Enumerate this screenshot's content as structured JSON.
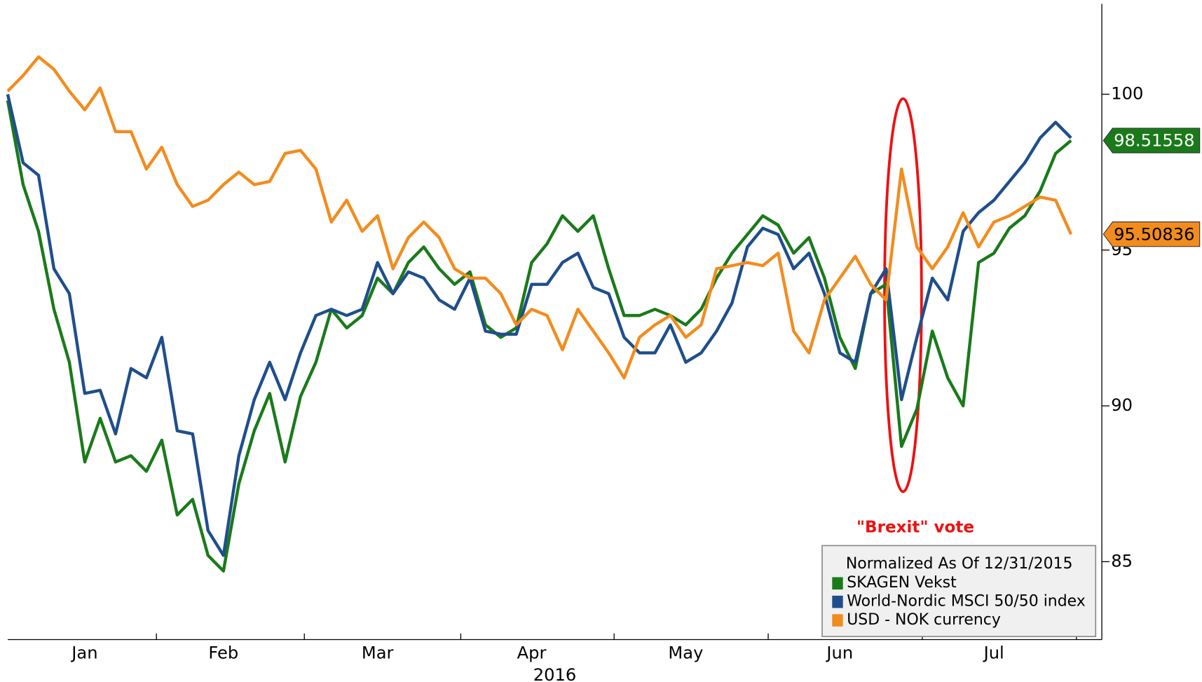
{
  "chart_data": {
    "type": "line",
    "xlabel": "2016",
    "annotation": "\"Brexit\" vote",
    "legend_title": "Normalized As Of 12/31/2015",
    "legend": "lower right",
    "ylim": [
      82.5,
      102.9
    ],
    "yticks": [
      85,
      90,
      95,
      100
    ],
    "categories": [
      null,
      null,
      null,
      null,
      null,
      "Jan",
      null,
      null,
      null,
      null,
      null,
      null,
      null,
      null,
      "Feb",
      null,
      null,
      null,
      null,
      null,
      null,
      null,
      null,
      null,
      "Mar",
      null,
      null,
      null,
      null,
      null,
      null,
      null,
      null,
      null,
      "Apr",
      null,
      null,
      null,
      null,
      null,
      null,
      null,
      null,
      null,
      "May",
      null,
      null,
      null,
      null,
      null,
      null,
      null,
      null,
      null,
      "Jun",
      null,
      null,
      null,
      null,
      null,
      null,
      null,
      null,
      null,
      "Jul",
      null,
      null,
      null,
      null,
      null
    ],
    "series": [
      {
        "name": "SKAGEN Vekst",
        "color": "#1a7a1a",
        "values": [
          99.8,
          97.1,
          95.6,
          93.1,
          91.4,
          88.2,
          89.6,
          88.2,
          88.4,
          87.9,
          88.9,
          86.5,
          87.0,
          85.2,
          84.7,
          87.5,
          89.2,
          90.4,
          88.2,
          90.3,
          91.4,
          93.1,
          92.5,
          92.9,
          94.1,
          93.6,
          94.6,
          95.1,
          94.4,
          93.9,
          94.3,
          92.6,
          92.2,
          92.5,
          94.6,
          95.2,
          96.1,
          95.6,
          96.1,
          94.4,
          92.9,
          92.9,
          93.1,
          92.9,
          92.6,
          93.1,
          94.1,
          94.9,
          95.5,
          96.1,
          95.8,
          94.9,
          95.4,
          94.1,
          92.2,
          91.2,
          93.6,
          93.9,
          88.7,
          89.9,
          92.4,
          90.9,
          90.0,
          94.6,
          94.9,
          95.7,
          96.1,
          96.9,
          98.1,
          98.51558
        ]
      },
      {
        "name": "World-Nordic MSCI 50/50 index",
        "color": "#1f4e8c",
        "values": [
          100,
          97.8,
          97.4,
          94.4,
          93.6,
          90.4,
          90.5,
          89.1,
          91.2,
          90.9,
          92.2,
          89.2,
          89.1,
          86.0,
          85.2,
          88.4,
          90.2,
          91.4,
          90.2,
          91.7,
          92.9,
          93.1,
          92.9,
          93.1,
          94.6,
          93.6,
          94.3,
          94.1,
          93.4,
          93.1,
          94.1,
          92.4,
          92.3,
          92.3,
          93.9,
          93.9,
          94.6,
          94.9,
          93.8,
          93.6,
          92.2,
          91.7,
          91.7,
          92.6,
          91.4,
          91.7,
          92.4,
          93.3,
          95.1,
          95.7,
          95.5,
          94.4,
          94.9,
          93.6,
          91.7,
          91.4,
          93.6,
          94.4,
          90.2,
          92.2,
          94.1,
          93.4,
          95.6,
          96.2,
          96.6,
          97.2,
          97.8,
          98.6,
          99.1,
          98.6
        ]
      },
      {
        "name": "USD - NOK currency",
        "color": "#f28c1e",
        "values": [
          100.1,
          100.6,
          101.2,
          100.8,
          100.1,
          99.5,
          100.2,
          98.8,
          98.8,
          97.6,
          98.3,
          97.1,
          96.4,
          96.6,
          97.1,
          97.5,
          97.1,
          97.2,
          98.1,
          98.2,
          97.6,
          95.9,
          96.6,
          95.6,
          96.1,
          94.4,
          95.4,
          95.9,
          95.4,
          94.4,
          94.1,
          94.1,
          93.6,
          92.6,
          93.1,
          92.9,
          91.8,
          93.1,
          92.4,
          91.7,
          90.9,
          92.2,
          92.6,
          92.9,
          92.2,
          92.6,
          94.4,
          94.5,
          94.6,
          94.5,
          94.9,
          92.4,
          91.7,
          93.4,
          94.1,
          94.8,
          93.9,
          93.4,
          97.6,
          95.1,
          94.4,
          95.1,
          96.2,
          95.1,
          95.9,
          96.1,
          96.4,
          96.7,
          96.6,
          95.50836
        ]
      }
    ]
  }
}
